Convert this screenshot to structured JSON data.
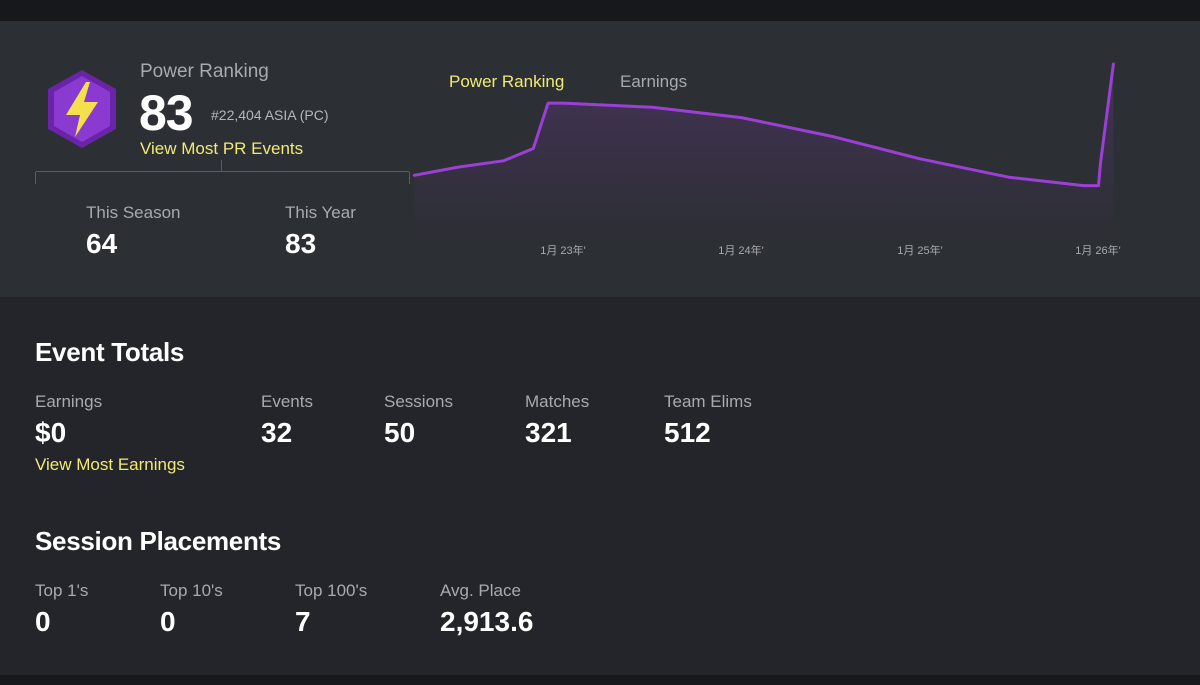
{
  "colors": {
    "accent_yellow": "#f2ea74",
    "chart_line": "#9b3fd6",
    "badge_purple": "#7b2fc0",
    "bolt_yellow": "#f4e04d"
  },
  "power_ranking": {
    "badge_icon": "lightning-bolt-icon",
    "label": "Power Ranking",
    "value": "83",
    "rank": "#22,404 ASIA (PC)",
    "link": "View Most PR Events",
    "this_season_label": "This Season",
    "this_season_value": "64",
    "this_year_label": "This Year",
    "this_year_value": "83"
  },
  "chart_tabs": {
    "power_ranking": "Power Ranking",
    "earnings": "Earnings"
  },
  "chart_data": {
    "type": "area",
    "x_tick_labels": [
      "1月 23年'",
      "1月 24年'",
      "1月 25年'",
      "1月 26年'"
    ],
    "series": [
      {
        "values": [
          {
            "x": "Mar 2022",
            "y": 29
          },
          {
            "x": "Jun 2022",
            "y": 33
          },
          {
            "x": "Sep 2022",
            "y": 36
          },
          {
            "x": "Nov 2022",
            "y": 42
          },
          {
            "x": "Dec 2022",
            "y": 64
          },
          {
            "x": "Jan 2023",
            "y": 64
          },
          {
            "x": "Jul 2023",
            "y": 62
          },
          {
            "x": "Jan 2024",
            "y": 57
          },
          {
            "x": "Jul 2024",
            "y": 48
          },
          {
            "x": "Jan 2025",
            "y": 37
          },
          {
            "x": "Jul 2025",
            "y": 28
          },
          {
            "x": "Dec 2025",
            "y": 24
          },
          {
            "x": "Jan 2026",
            "y": 24
          },
          {
            "x": "Jan 2026",
            "y": 35
          },
          {
            "x": "Feb 2026",
            "y": 83
          }
        ]
      }
    ]
  },
  "event_totals": {
    "title": "Event Totals",
    "earnings_label": "Earnings",
    "earnings_value": "$0",
    "earnings_link": "View Most Earnings",
    "events_label": "Events",
    "events_value": "32",
    "sessions_label": "Sessions",
    "sessions_value": "50",
    "matches_label": "Matches",
    "matches_value": "321",
    "team_elims_label": "Team Elims",
    "team_elims_value": "512"
  },
  "session_placements": {
    "title": "Session Placements",
    "top1_label": "Top 1's",
    "top1_value": "0",
    "top10_label": "Top 10's",
    "top10_value": "0",
    "top100_label": "Top 100's",
    "top100_value": "7",
    "avg_label": "Avg. Place",
    "avg_value": "2,913.6"
  }
}
